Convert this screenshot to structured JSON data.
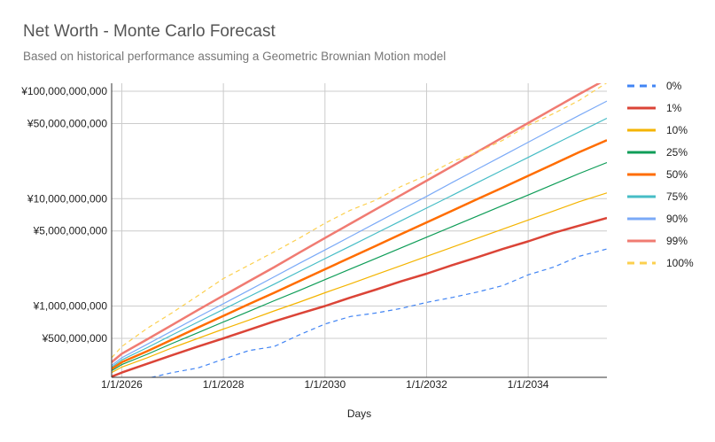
{
  "chart_data": {
    "type": "line",
    "title": "Net Worth - Monte Carlo Forecast",
    "subtitle": "Based on historical performance assuming a Geometric Brownian Motion model",
    "xlabel": "Days",
    "ylabel": "",
    "yscale": "log",
    "xlim": [
      2025.8,
      2035.55
    ],
    "ylim": [
      200000000,
      100000000000
    ],
    "x_ticks": [
      {
        "value": 2026,
        "label": "1/1/2026"
      },
      {
        "value": 2028,
        "label": "1/1/2028"
      },
      {
        "value": 2030,
        "label": "1/1/2030"
      },
      {
        "value": 2032,
        "label": "1/1/2032"
      },
      {
        "value": 2034,
        "label": "1/1/2034"
      }
    ],
    "y_ticks": [
      {
        "value": 500000000,
        "label": "¥500,000,000"
      },
      {
        "value": 1000000000,
        "label": "¥1,000,000,000"
      },
      {
        "value": 5000000000,
        "label": "¥5,000,000,000"
      },
      {
        "value": 10000000000,
        "label": "¥10,000,000,000"
      },
      {
        "value": 50000000000,
        "label": "¥50,000,000,000"
      },
      {
        "value": 100000000000,
        "label": "¥100,000,000,000"
      }
    ],
    "grid": true,
    "legend_position": "right",
    "x": [
      2025.8,
      2026.0,
      2026.5,
      2027.0,
      2027.5,
      2028.0,
      2028.5,
      2029.0,
      2029.5,
      2030.0,
      2030.5,
      2031.0,
      2031.5,
      2032.0,
      2032.5,
      2033.0,
      2033.5,
      2034.0,
      2034.5,
      2035.0,
      2035.55
    ],
    "series": [
      {
        "name": "0%",
        "color": "#4285F4",
        "style": "dashed",
        "width": 1.2,
        "values": [
          210000000,
          205000000,
          212000000,
          240000000,
          265000000,
          320000000,
          385000000,
          420000000,
          540000000,
          680000000,
          800000000,
          860000000,
          950000000,
          1080000000,
          1200000000,
          1350000000,
          1550000000,
          1950000000,
          2300000000,
          2900000000,
          3400000000
        ]
      },
      {
        "name": "1%",
        "color": "#DB4437",
        "style": "solid",
        "width": 2.5,
        "values": [
          220000000,
          240000000,
          290000000,
          350000000,
          420000000,
          500000000,
          600000000,
          720000000,
          850000000,
          1000000000,
          1200000000,
          1420000000,
          1700000000,
          2000000000,
          2400000000,
          2850000000,
          3400000000,
          4000000000,
          4800000000,
          5600000000,
          6600000000
        ]
      },
      {
        "name": "10%",
        "color": "#F4B400",
        "style": "solid",
        "width": 1.2,
        "values": [
          240000000,
          270000000,
          330000000,
          410000000,
          500000000,
          610000000,
          740000000,
          900000000,
          1090000000,
          1330000000,
          1610000000,
          1960000000,
          2380000000,
          2900000000,
          3520000000,
          4280000000,
          5200000000,
          6320000000,
          7680000000,
          9340000000,
          11300000000
        ]
      },
      {
        "name": "25%",
        "color": "#0F9D58",
        "style": "solid",
        "width": 1.2,
        "values": [
          250000000,
          285000000,
          355000000,
          450000000,
          565000000,
          710000000,
          890000000,
          1120000000,
          1400000000,
          1760000000,
          2210000000,
          2770000000,
          3480000000,
          4370000000,
          5480000000,
          6880000000,
          8640000000,
          10800000000,
          13600000000,
          17100000000,
          21700000000
        ]
      },
      {
        "name": "50%",
        "color": "#FF6D00",
        "style": "solid",
        "width": 2.5,
        "values": [
          260000000,
          300000000,
          380000000,
          490000000,
          630000000,
          810000000,
          1040000000,
          1330000000,
          1710000000,
          2200000000,
          2830000000,
          3630000000,
          4670000000,
          6000000000,
          7700000000,
          9900000000,
          12700000000,
          16300000000,
          21000000000,
          27000000000,
          35000000000
        ]
      },
      {
        "name": "75%",
        "color": "#46BDC6",
        "style": "solid",
        "width": 1.2,
        "values": [
          270000000,
          315000000,
          410000000,
          540000000,
          710000000,
          930000000,
          1220000000,
          1600000000,
          2100000000,
          2760000000,
          3620000000,
          4750000000,
          6230000000,
          8170000000,
          10700000000,
          14100000000,
          18500000000,
          24200000000,
          31800000000,
          41700000000,
          56000000000
        ]
      },
      {
        "name": "90%",
        "color": "#7BAAF7",
        "style": "solid",
        "width": 1.2,
        "values": [
          280000000,
          330000000,
          440000000,
          590000000,
          790000000,
          1050000000,
          1400000000,
          1870000000,
          2500000000,
          3330000000,
          4440000000,
          5930000000,
          7910000000,
          10500000000,
          14100000000,
          18800000000,
          25100000000,
          33500000000,
          44700000000,
          59600000000,
          81000000000
        ]
      },
      {
        "name": "99%",
        "color": "#F07B72",
        "style": "solid",
        "width": 2.5,
        "values": [
          300000000,
          360000000,
          490000000,
          670000000,
          920000000,
          1250000000,
          1700000000,
          2300000000,
          3150000000,
          4300000000,
          5850000000,
          7950000000,
          10800000000,
          14700000000,
          20000000000,
          27300000000,
          37200000000,
          50600000000,
          68900000000,
          93800000000,
          130000000000
        ]
      },
      {
        "name": "100%",
        "color": "#FCD04F",
        "style": "dashed",
        "width": 1.2,
        "values": [
          330000000,
          420000000,
          620000000,
          870000000,
          1250000000,
          1800000000,
          2400000000,
          3200000000,
          4300000000,
          5900000000,
          7800000000,
          9700000000,
          13000000000,
          16500000000,
          22000000000,
          27000000000,
          35000000000,
          48000000000,
          62000000000,
          82000000000,
          120000000000
        ]
      }
    ]
  }
}
